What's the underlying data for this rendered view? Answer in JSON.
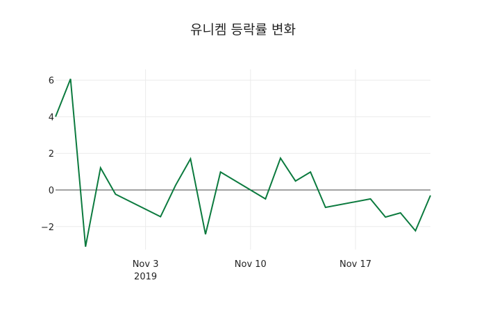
{
  "chart_data": {
    "type": "line",
    "title": "유니켐 등락률 변화",
    "xlabel": "",
    "ylabel": "",
    "x": [
      "2019-10-28",
      "2019-10-29",
      "2019-10-30",
      "2019-10-31",
      "2019-11-01",
      "2019-11-04",
      "2019-11-05",
      "2019-11-06",
      "2019-11-07",
      "2019-11-08",
      "2019-11-11",
      "2019-11-12",
      "2019-11-13",
      "2019-11-14",
      "2019-11-15",
      "2019-11-18",
      "2019-11-19",
      "2019-11-20",
      "2019-11-21",
      "2019-11-22"
    ],
    "series": [
      {
        "name": "등락률",
        "color": "#0b7a3e",
        "values": [
          4.0,
          6.07,
          -3.1,
          1.21,
          -0.23,
          -1.46,
          0.25,
          1.7,
          -2.42,
          0.98,
          -0.49,
          1.74,
          0.49,
          0.98,
          -0.95,
          -0.49,
          -1.48,
          -1.25,
          -2.23,
          -0.3
        ]
      }
    ],
    "ylim": [
      -3.2,
      6.6
    ],
    "yticks": [
      -2,
      0,
      2,
      4,
      6
    ],
    "ytick_labels": [
      "−2",
      "0",
      "2",
      "4",
      "6"
    ],
    "xticks": [
      "2019-11-03",
      "2019-11-10",
      "2019-11-17"
    ],
    "xtick_labels": [
      "Nov 3",
      "Nov 10",
      "Nov 17"
    ],
    "xtick_sublabel": "2019",
    "grid": true,
    "zeroline": true
  }
}
